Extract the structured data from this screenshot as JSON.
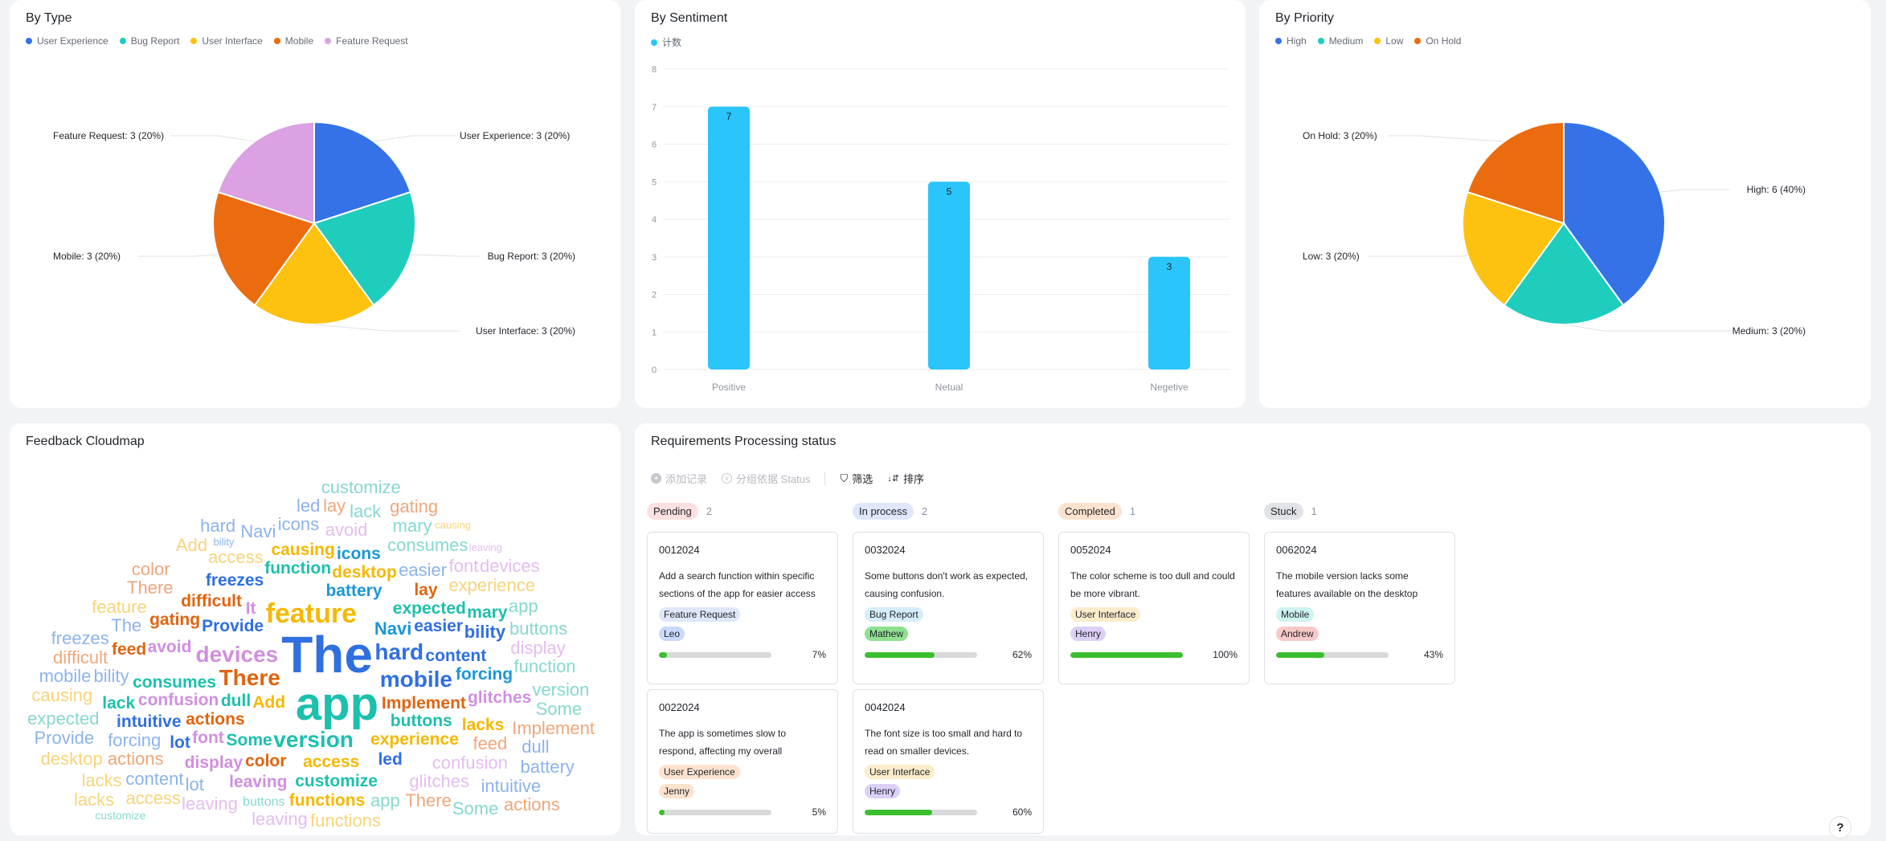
{
  "by_type": {
    "title": "By Type",
    "chart_data": {
      "type": "pie",
      "title": "By Type",
      "legend_position": "top-left",
      "slices": [
        {
          "name": "User Experience",
          "value": 3,
          "label": "User Experience: 3 (20%)",
          "color": "#3572e8"
        },
        {
          "name": "Bug Report",
          "value": 3,
          "label": "Bug Report: 3 (20%)",
          "color": "#1fcdbd"
        },
        {
          "name": "User Interface",
          "value": 3,
          "label": "User Interface: 3 (20%)",
          "color": "#fcc20f"
        },
        {
          "name": "Mobile",
          "value": 3,
          "label": "Mobile: 3 (20%)",
          "color": "#eb6c0e"
        },
        {
          "name": "Feature Request",
          "value": 3,
          "label": "Feature Request: 3 (20%)",
          "color": "#dba1e2"
        }
      ]
    }
  },
  "by_sentiment": {
    "title": "By Sentiment",
    "chart_data": {
      "type": "bar",
      "title": "By Sentiment",
      "legend_position": "top-left",
      "categories": [
        "Positive",
        "Netual",
        "Negetive"
      ],
      "series": [
        {
          "name": "计数",
          "values": [
            7,
            5,
            3
          ],
          "color": "#29c5fb"
        }
      ],
      "ylim": [
        0,
        8
      ],
      "yticks": [
        "0",
        "1",
        "2",
        "3",
        "4",
        "5",
        "6",
        "7",
        "8"
      ],
      "grid": true
    }
  },
  "by_priority": {
    "title": "By Priority",
    "chart_data": {
      "type": "pie",
      "title": "By Priority",
      "legend_position": "top-left",
      "slices": [
        {
          "name": "High",
          "value": 6,
          "label": "High: 6 (40%)",
          "color": "#3572e8"
        },
        {
          "name": "Medium",
          "value": 3,
          "label": "Medium: 3 (20%)",
          "color": "#1fcdbd"
        },
        {
          "name": "Low",
          "value": 3,
          "label": "Low: 3 (20%)",
          "color": "#fcc20f"
        },
        {
          "name": "On Hold",
          "value": 3,
          "label": "On Hold: 3 (20%)",
          "color": "#eb6c0e"
        }
      ]
    }
  },
  "cloud": {
    "title": "Feedback Cloudmap",
    "colors": {
      "blue": "#2f6fe0",
      "teal": "#1cc0ad",
      "yellow": "#f5b800",
      "orange": "#e0640f",
      "lilac": "#d08fe0",
      "lblue": "#8cb3ec",
      "lteal": "#86d8d0",
      "lyellow": "#f7d47a",
      "lorange": "#eea77a",
      "llilac": "#e4bdef",
      "sky": "#1a96d8"
    },
    "words": [
      {
        "t": "The",
        "c": "blue"
      },
      {
        "t": "app",
        "c": "teal"
      },
      {
        "t": "feature",
        "c": "yellow"
      },
      {
        "t": "There",
        "c": "orange"
      },
      {
        "t": "mobile",
        "c": "blue"
      },
      {
        "t": "hard",
        "c": "blue"
      },
      {
        "t": "version",
        "c": "teal"
      },
      {
        "t": "devices",
        "c": "lilac"
      },
      {
        "t": "Implement",
        "c": "orange"
      },
      {
        "t": "content",
        "c": "blue"
      },
      {
        "t": "forcing",
        "c": "sky"
      },
      {
        "t": "glitches",
        "c": "lilac"
      },
      {
        "t": "Navi",
        "c": "sky"
      },
      {
        "t": "easier",
        "c": "blue"
      },
      {
        "t": "bility",
        "c": "blue"
      },
      {
        "t": "mary",
        "c": "teal"
      },
      {
        "t": "expected",
        "c": "teal"
      },
      {
        "t": "battery",
        "c": "sky"
      },
      {
        "t": "desktop",
        "c": "yellow"
      },
      {
        "t": "lay",
        "c": "orange"
      },
      {
        "t": "icons",
        "c": "sky"
      },
      {
        "t": "function",
        "c": "teal"
      },
      {
        "t": "freezes",
        "c": "blue"
      },
      {
        "t": "causing",
        "c": "yellow"
      },
      {
        "t": "difficult",
        "c": "orange"
      },
      {
        "t": "Provide",
        "c": "blue"
      },
      {
        "t": "gating",
        "c": "orange"
      },
      {
        "t": "avoid",
        "c": "lilac"
      },
      {
        "t": "consumes",
        "c": "teal"
      },
      {
        "t": "It",
        "c": "lilac"
      },
      {
        "t": "feed",
        "c": "orange"
      },
      {
        "t": "confusion",
        "c": "lilac"
      },
      {
        "t": "lack",
        "c": "teal"
      },
      {
        "t": "actions",
        "c": "orange"
      },
      {
        "t": "intuitive",
        "c": "blue"
      },
      {
        "t": "dull",
        "c": "teal"
      },
      {
        "t": "Add",
        "c": "yellow"
      },
      {
        "t": "Some",
        "c": "teal"
      },
      {
        "t": "font",
        "c": "lilac"
      },
      {
        "t": "color",
        "c": "orange"
      },
      {
        "t": "lot",
        "c": "blue"
      },
      {
        "t": "access",
        "c": "yellow"
      },
      {
        "t": "display",
        "c": "lilac"
      },
      {
        "t": "customize",
        "c": "teal"
      },
      {
        "t": "experience",
        "c": "yellow"
      },
      {
        "t": "buttons",
        "c": "teal"
      },
      {
        "t": "lacks",
        "c": "yellow"
      },
      {
        "t": "leaving",
        "c": "lilac"
      },
      {
        "t": "functions",
        "c": "yellow"
      },
      {
        "t": "led",
        "c": "blue"
      },
      {
        "t": "customize",
        "c": "lteal"
      },
      {
        "t": "led",
        "c": "lblue"
      },
      {
        "t": "lay",
        "c": "lorange"
      },
      {
        "t": "gating",
        "c": "lorange"
      },
      {
        "t": "icons",
        "c": "lblue"
      },
      {
        "t": "lack",
        "c": "lteal"
      },
      {
        "t": "mary",
        "c": "lteal"
      },
      {
        "t": "causing",
        "c": "lyellow"
      },
      {
        "t": "avoid",
        "c": "llilac"
      },
      {
        "t": "consumes",
        "c": "lteal"
      },
      {
        "t": "Navi",
        "c": "lblue"
      },
      {
        "t": "access",
        "c": "lyellow"
      },
      {
        "t": "Add",
        "c": "lyellow"
      },
      {
        "t": "hard",
        "c": "lblue"
      },
      {
        "t": "bility",
        "c": "lblue"
      },
      {
        "t": "easier",
        "c": "lblue"
      },
      {
        "t": "font",
        "c": "llilac"
      },
      {
        "t": "leaving",
        "c": "llilac"
      },
      {
        "t": "color",
        "c": "lorange"
      },
      {
        "t": "experience",
        "c": "lyellow"
      },
      {
        "t": "There",
        "c": "lorange"
      },
      {
        "t": "devices",
        "c": "llilac"
      },
      {
        "t": "feature",
        "c": "lyellow"
      },
      {
        "t": "app",
        "c": "lteal"
      },
      {
        "t": "The",
        "c": "lblue"
      },
      {
        "t": "buttons",
        "c": "lteal"
      },
      {
        "t": "freezes",
        "c": "lblue"
      },
      {
        "t": "display",
        "c": "llilac"
      },
      {
        "t": "difficult",
        "c": "lorange"
      },
      {
        "t": "bility",
        "c": "lblue"
      },
      {
        "t": "function",
        "c": "lteal"
      },
      {
        "t": "mobile",
        "c": "lblue"
      },
      {
        "t": "version",
        "c": "lteal"
      },
      {
        "t": "causing",
        "c": "lyellow"
      },
      {
        "t": "Some",
        "c": "lteal"
      },
      {
        "t": "expected",
        "c": "lteal"
      },
      {
        "t": "forcing",
        "c": "lblue"
      },
      {
        "t": "Implement",
        "c": "lorange"
      },
      {
        "t": "Provide",
        "c": "lblue"
      },
      {
        "t": "actions",
        "c": "lorange"
      },
      {
        "t": "feed",
        "c": "lorange"
      },
      {
        "t": "dull",
        "c": "lblue"
      },
      {
        "t": "desktop",
        "c": "lyellow"
      },
      {
        "t": "content",
        "c": "lblue"
      },
      {
        "t": "confusion",
        "c": "llilac"
      },
      {
        "t": "battery",
        "c": "lblue"
      },
      {
        "t": "lacks",
        "c": "lyellow"
      },
      {
        "t": "lot",
        "c": "lblue"
      },
      {
        "t": "leaving",
        "c": "llilac"
      },
      {
        "t": "glitches",
        "c": "llilac"
      },
      {
        "t": "intuitive",
        "c": "lblue"
      },
      {
        "t": "lacks",
        "c": "lyellow"
      },
      {
        "t": "access",
        "c": "lyellow"
      },
      {
        "t": "leaving",
        "c": "llilac"
      },
      {
        "t": "functions",
        "c": "lyellow"
      },
      {
        "t": "app",
        "c": "lteal"
      },
      {
        "t": "There",
        "c": "lorange"
      },
      {
        "t": "Some",
        "c": "lteal"
      },
      {
        "t": "actions",
        "c": "lorange"
      },
      {
        "t": "buttons",
        "c": "lteal"
      },
      {
        "t": "customize",
        "c": "lteal"
      }
    ]
  },
  "requirements": {
    "title": "Requirements Processing status",
    "toolbar": {
      "add": "添加记录",
      "group": "分组依据 Status",
      "filter": "筛选",
      "sort": "排序"
    },
    "columns": [
      {
        "status": "Pending",
        "count": "2",
        "color": "#fde0e0",
        "cards": [
          {
            "id": "0012024",
            "desc": "Add a search function within specific sections of the app for easier access to",
            "type": "Feature Request",
            "type_color": "#dfe7fb",
            "person": "Leo",
            "person_color": "#c9d8fb",
            "progress": 7,
            "progress_label": "7%"
          },
          {
            "id": "0022024",
            "desc": "The app is sometimes slow to respond, affecting my overall experience.",
            "type": "User Experience",
            "type_color": "#fde3cf",
            "person": "Jenny",
            "person_color": "#fde3cf",
            "progress": 5,
            "progress_label": "5%"
          }
        ]
      },
      {
        "status": "In process",
        "count": "2",
        "color": "#dfe7fb",
        "cards": [
          {
            "id": "0032024",
            "desc": "Some buttons don't work as expected, causing confusion.",
            "type": "Bug Report",
            "type_color": "#d5eefa",
            "person": "Mathew",
            "person_color": "#8fe08f",
            "progress": 62,
            "progress_label": "62%"
          },
          {
            "id": "0042024",
            "desc": "The font size is too small and hard to read on smaller devices.",
            "type": "User Interface",
            "type_color": "#fbeccb",
            "person": "Henry",
            "person_color": "#ddd0f7",
            "progress": 60,
            "progress_label": "60%"
          }
        ]
      },
      {
        "status": "Completed",
        "count": "1",
        "color": "#fde3cf",
        "cards": [
          {
            "id": "0052024",
            "desc": "The color scheme is too dull and could be more vibrant.",
            "type": "User Interface",
            "type_color": "#fbeccb",
            "person": "Henry",
            "person_color": "#ddd0f7",
            "progress": 100,
            "progress_label": "100%"
          }
        ]
      },
      {
        "status": "Stuck",
        "count": "1",
        "color": "#e1e3e6",
        "cards": [
          {
            "id": "0062024",
            "desc": "The mobile version lacks some features available on the desktop version.",
            "type": "Mobile",
            "type_color": "#cff3ee",
            "person": "Andrew",
            "person_color": "#f9c9c9",
            "progress": 43,
            "progress_label": "43%"
          }
        ]
      }
    ]
  },
  "help": {
    "icon": "question-icon",
    "glyph": "?"
  }
}
